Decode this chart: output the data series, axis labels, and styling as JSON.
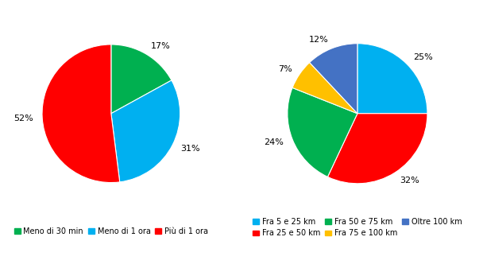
{
  "left_pie": {
    "values": [
      17,
      31,
      52
    ],
    "labels": [
      "17%",
      "31%",
      "52%"
    ],
    "colors": [
      "#00b050",
      "#00b0f0",
      "#ff0000"
    ],
    "legend_labels": [
      "Meno di 30 min",
      "Meno di 1 ora",
      "Più di 1 ora"
    ],
    "startangle": 90
  },
  "right_pie": {
    "values": [
      25,
      32,
      24,
      7,
      12
    ],
    "labels": [
      "25%",
      "32%",
      "24%",
      "7%",
      "12%"
    ],
    "colors": [
      "#00b0f0",
      "#ff0000",
      "#00b050",
      "#ffc000",
      "#4472c4"
    ],
    "legend_labels": [
      "Fra 5 e 25 km",
      "Fra 25 e 50 km",
      "Fra 50 e 75 km",
      "Fra 75 e 100 km",
      "Oltre 100 km"
    ],
    "startangle": 90
  },
  "background_color": "#ffffff",
  "label_fontsize": 8,
  "legend_fontsize": 7
}
